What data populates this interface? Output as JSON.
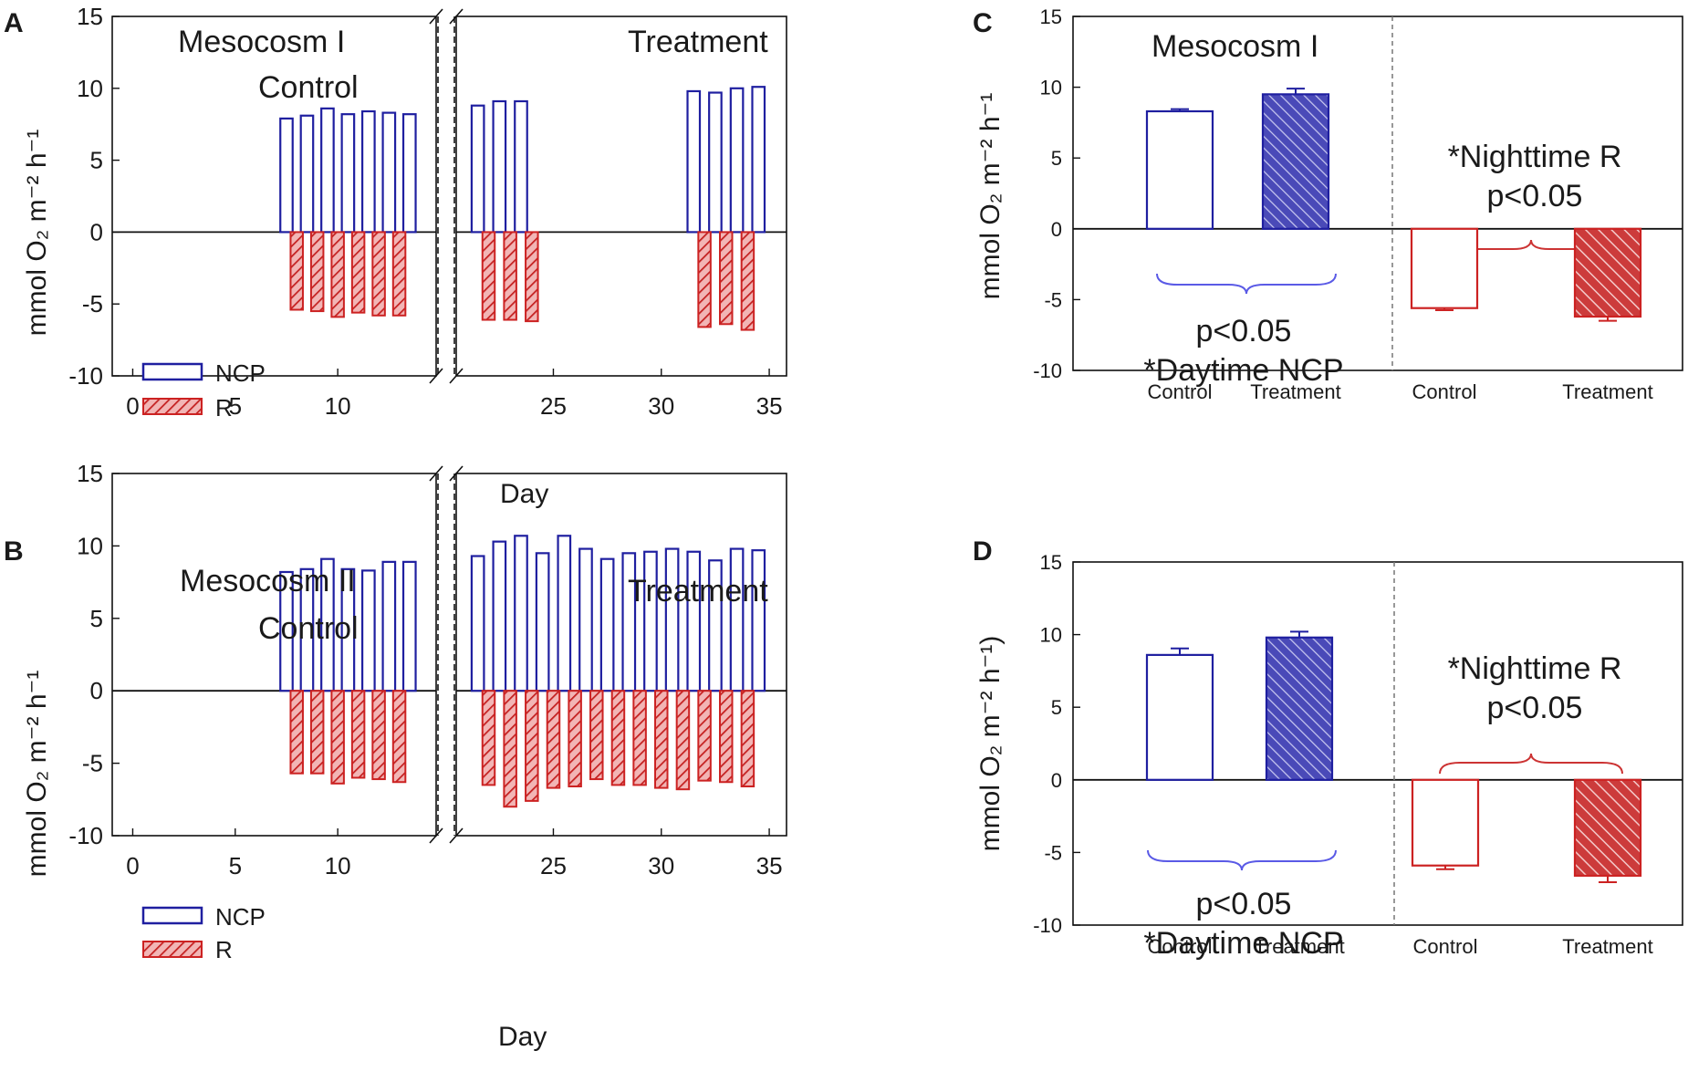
{
  "colors": {
    "ncp": "#1f1fa0",
    "r": "#cc2222",
    "axis": "#111111",
    "brace_blue": "#5a5ae6",
    "brace_red": "#cc3333",
    "divider": "#777777"
  },
  "legend": {
    "ncp": "NCP",
    "r": "R"
  },
  "chart_data": [
    {
      "id": "A",
      "panel_letter": "A",
      "type": "bar",
      "xlabel": "Day",
      "ylabel": "mmol O₂ m⁻² h⁻¹",
      "ylim": [
        -10,
        15
      ],
      "yticks": [
        -10,
        -5,
        0,
        5,
        10,
        15
      ],
      "xticks_left": [
        0,
        5,
        10
      ],
      "xticks_right": [
        25,
        30,
        35
      ],
      "xlim_left": [
        -1,
        14.8
      ],
      "xlim_right": [
        20.5,
        35.8
      ],
      "left_label_line1": "Mesocosm I",
      "left_label_line2": "Control",
      "right_label": "Treatment",
      "series": [
        {
          "name": "NCP",
          "days": [
            7.5,
            8.5,
            9.5,
            10.5,
            11.5,
            12.5,
            13.5
          ],
          "values": [
            7.9,
            8.1,
            8.6,
            8.2,
            8.4,
            8.3,
            8.2
          ]
        },
        {
          "name": "R",
          "days": [
            8,
            9,
            10,
            11,
            12,
            13
          ],
          "values": [
            -5.4,
            -5.5,
            -5.9,
            -5.6,
            -5.8,
            -5.8
          ]
        },
        {
          "name": "NCP",
          "days": [
            21.5,
            22.5,
            23.5,
            31.5,
            32.5,
            33.5,
            34.5
          ],
          "values": [
            8.8,
            9.1,
            9.1,
            9.8,
            9.7,
            10.0,
            10.1
          ]
        },
        {
          "name": "R",
          "days": [
            22,
            23,
            24,
            32,
            33,
            34
          ],
          "values": [
            -6.1,
            -6.1,
            -6.2,
            -6.6,
            -6.4,
            -6.8
          ]
        }
      ]
    },
    {
      "id": "B",
      "panel_letter": "B",
      "type": "bar",
      "xlabel": "Day",
      "ylabel": "mmol O₂ m⁻² h⁻¹",
      "ylim": [
        -10,
        15
      ],
      "yticks": [
        -10,
        -5,
        0,
        5,
        10,
        15
      ],
      "xticks_left": [
        0,
        5,
        10
      ],
      "xticks_right": [
        25,
        30,
        35
      ],
      "xlim_left": [
        -1,
        14.8
      ],
      "xlim_right": [
        20.5,
        35.8
      ],
      "left_label_line1": "Mesocosm II",
      "left_label_line2": "Control",
      "right_label": "Treatment",
      "series": [
        {
          "name": "NCP",
          "days": [
            7.5,
            8.5,
            9.5,
            10.5,
            11.5,
            12.5,
            13.5
          ],
          "values": [
            8.2,
            8.4,
            9.1,
            8.4,
            8.3,
            8.9,
            8.9
          ]
        },
        {
          "name": "R",
          "days": [
            8,
            9,
            10,
            11,
            12,
            13
          ],
          "values": [
            -5.7,
            -5.7,
            -6.4,
            -6.0,
            -6.1,
            -6.3
          ]
        },
        {
          "name": "NCP",
          "days": [
            21.5,
            22.5,
            23.5,
            24.5,
            25.5,
            26.5,
            27.5,
            28.5,
            29.5,
            30.5,
            31.5,
            32.5,
            33.5,
            34.5
          ],
          "values": [
            9.3,
            10.3,
            10.7,
            9.5,
            10.7,
            9.8,
            9.1,
            9.5,
            9.6,
            9.8,
            9.6,
            9.0,
            9.8,
            9.7
          ]
        },
        {
          "name": "R",
          "days": [
            22,
            23,
            24,
            25,
            26,
            27,
            28,
            29,
            30,
            31,
            32,
            33,
            34
          ],
          "values": [
            -6.5,
            -8.0,
            -7.6,
            -6.7,
            -6.6,
            -6.1,
            -6.5,
            -6.5,
            -6.7,
            -6.8,
            -6.2,
            -6.3,
            -6.6
          ]
        }
      ]
    },
    {
      "id": "C",
      "panel_letter": "C",
      "type": "bar",
      "ylabel": "mmol O₂ m⁻² h⁻¹",
      "ylim": [
        -10,
        15
      ],
      "yticks": [
        -10,
        -5,
        0,
        5,
        10,
        15
      ],
      "title": "Mesocosm I",
      "categories": [
        "Control",
        "Treatment",
        "Control",
        "Treatment"
      ],
      "values": [
        8.3,
        9.5,
        -5.6,
        -6.2
      ],
      "errors": [
        0.15,
        0.4,
        0.15,
        0.3
      ],
      "series_of_bar": [
        "NCP",
        "NCP",
        "R",
        "R"
      ],
      "ncp_annotation_line1": "p<0.05",
      "ncp_annotation_line2": "*Daytime NCP",
      "r_annotation_line1": "*Nighttime R",
      "r_annotation_line2": "p<0.05"
    },
    {
      "id": "D",
      "panel_letter": "D",
      "type": "bar",
      "ylabel": "mmol O₂ m⁻² h⁻¹)",
      "ylim": [
        -10,
        15
      ],
      "yticks": [
        -10,
        -5,
        0,
        5,
        10,
        15
      ],
      "title": "",
      "categories": [
        "Control",
        "Treatment",
        "Control",
        "Treatment"
      ],
      "values": [
        8.6,
        9.8,
        -5.9,
        -6.6
      ],
      "errors": [
        0.45,
        0.4,
        0.25,
        0.45
      ],
      "series_of_bar": [
        "NCP",
        "NCP",
        "R",
        "R"
      ],
      "ncp_annotation_line1": "p<0.05",
      "ncp_annotation_line2": "*Daytime NCP",
      "r_annotation_line1": "*Nighttime R",
      "r_annotation_line2": "p<0.05"
    }
  ]
}
